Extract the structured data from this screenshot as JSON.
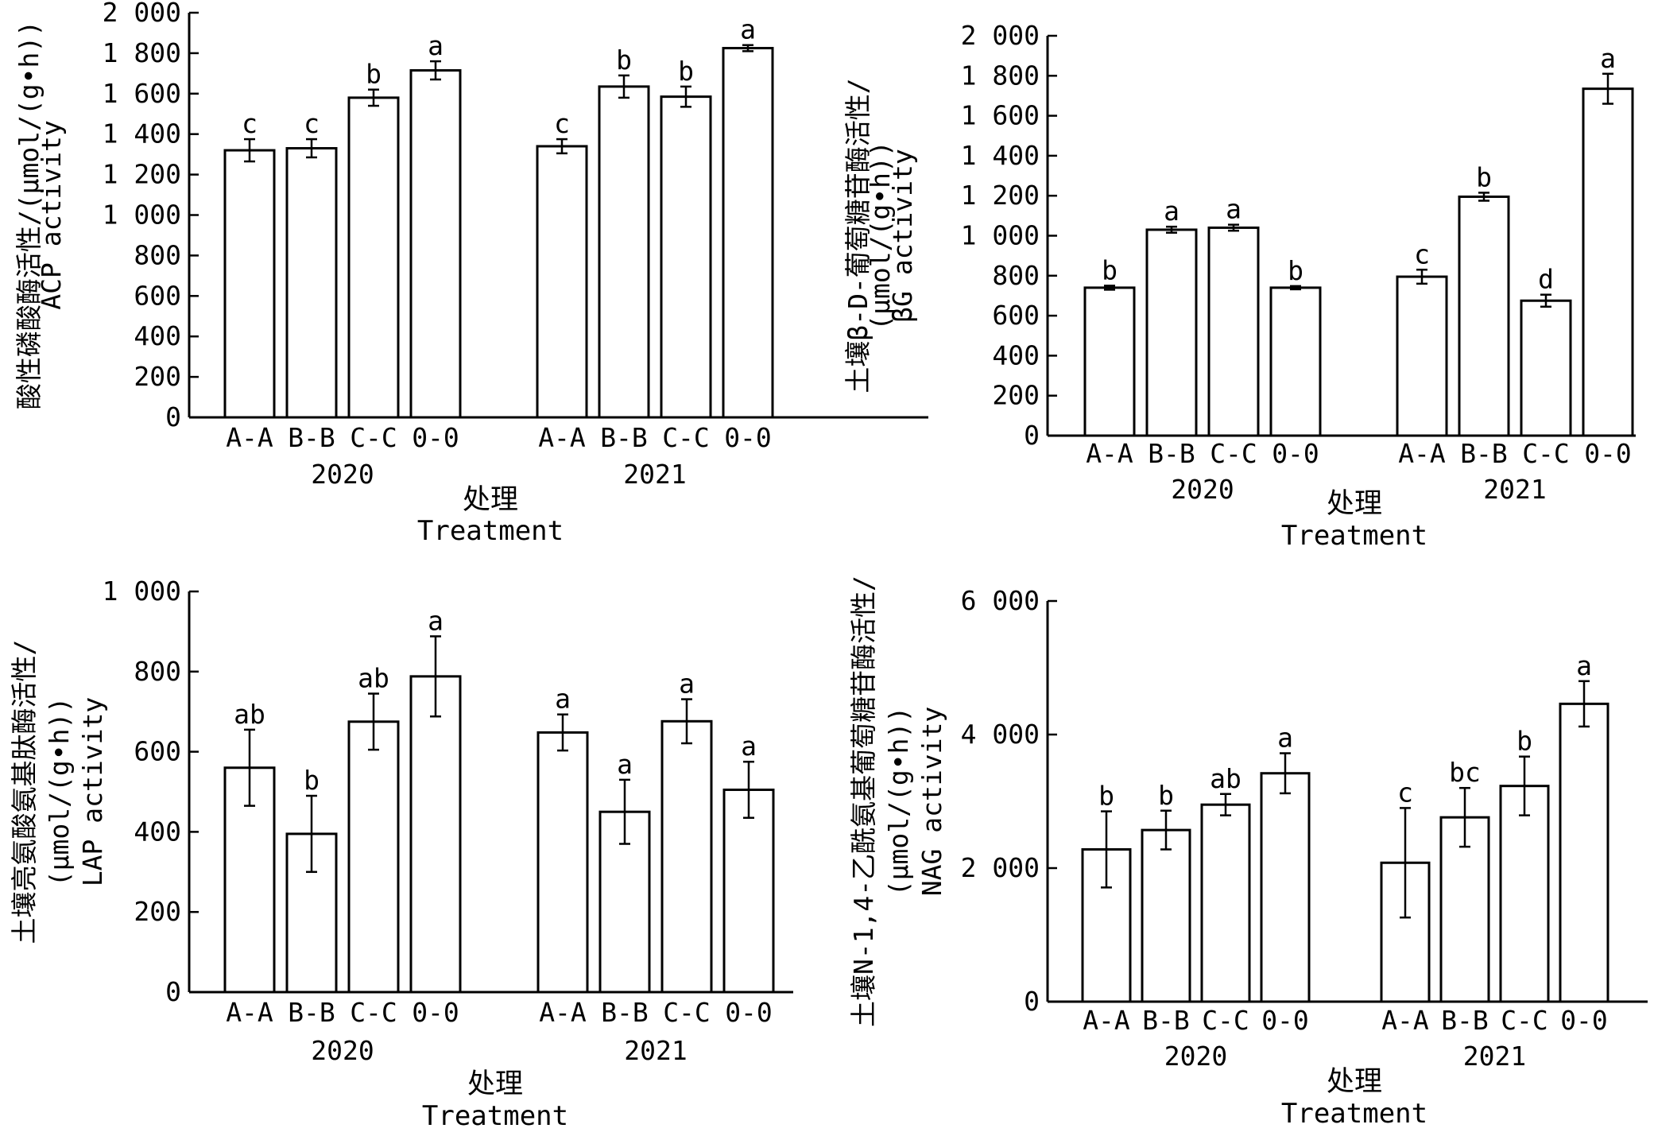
{
  "chart_data": [
    {
      "type": "bar",
      "years": [
        "2020",
        "2021"
      ],
      "categories": [
        "A-A",
        "B-B",
        "C-C",
        "0-0"
      ],
      "ylim": [
        0,
        2000
      ],
      "yticks": [
        0,
        200,
        400,
        600,
        800,
        1000,
        1200,
        1400,
        1600,
        1800,
        2000
      ],
      "ytick_labels": [
        "0",
        "200",
        "400",
        "600",
        "800",
        "1 000",
        "1 200",
        "1 400",
        "1 600",
        "1 800",
        "2 000"
      ],
      "ylabel_lines": [
        "酸性磷酸酶活性/(μmol/(g•h))",
        "ACP activity"
      ],
      "xlabel_cn": "处理",
      "xlabel_en": "Treatment",
      "groups": [
        {
          "year": "2020",
          "values": [
            1320,
            1330,
            1580,
            1715
          ],
          "errors": [
            55,
            45,
            40,
            45
          ],
          "letters": [
            "c",
            "c",
            "b",
            "a"
          ]
        },
        {
          "year": "2021",
          "values": [
            1340,
            1635,
            1585,
            1825
          ],
          "errors": [
            35,
            55,
            50,
            15
          ],
          "letters": [
            "c",
            "b",
            "b",
            "a"
          ]
        }
      ]
    },
    {
      "type": "bar",
      "years": [
        "2020",
        "2021"
      ],
      "categories": [
        "A-A",
        "B-B",
        "C-C",
        "0-0"
      ],
      "ylim": [
        0,
        2000
      ],
      "yticks": [
        0,
        200,
        400,
        600,
        800,
        1000,
        1200,
        1400,
        1600,
        1800,
        2000
      ],
      "ytick_labels": [
        "0",
        "200",
        "400",
        "600",
        "800",
        "1 000",
        "1 200",
        "1 400",
        "1 600",
        "1 800",
        "2 000"
      ],
      "ylabel_lines": [
        "土壤β-D-葡萄糖苷酶活性/",
        "(μmol/(g•h))",
        "βG activity"
      ],
      "xlabel_cn": "处理",
      "xlabel_en": "Treatment",
      "groups": [
        {
          "year": "2020",
          "values": [
            740,
            1030,
            1040,
            740
          ],
          "errors": [
            10,
            15,
            15,
            8
          ],
          "letters": [
            "b",
            "a",
            "a",
            "b"
          ]
        },
        {
          "year": "2021",
          "values": [
            795,
            1195,
            675,
            1735
          ],
          "errors": [
            35,
            20,
            30,
            75
          ],
          "letters": [
            "c",
            "b",
            "d",
            "a"
          ]
        }
      ]
    },
    {
      "type": "bar",
      "years": [
        "2020",
        "2021"
      ],
      "categories": [
        "A-A",
        "B-B",
        "C-C",
        "0-0"
      ],
      "ylim": [
        0,
        1000
      ],
      "yticks": [
        0,
        200,
        400,
        600,
        800,
        1000
      ],
      "ytick_labels": [
        "0",
        "200",
        "400",
        "600",
        "800",
        "1 000"
      ],
      "ylabel_lines": [
        "土壤亮氨酸氨基肽酶活性/",
        "(μmol/(g•h))",
        "LAP activity"
      ],
      "xlabel_cn": "处理",
      "xlabel_en": "Treatment",
      "groups": [
        {
          "year": "2020",
          "values": [
            560,
            395,
            675,
            788
          ],
          "errors": [
            95,
            95,
            70,
            100
          ],
          "letters": [
            "ab",
            "b",
            "ab",
            "a"
          ]
        },
        {
          "year": "2021",
          "values": [
            648,
            450,
            676,
            505
          ],
          "errors": [
            45,
            80,
            55,
            70
          ],
          "letters": [
            "a",
            "a",
            "a",
            "a"
          ]
        }
      ]
    },
    {
      "type": "bar",
      "years": [
        "2020",
        "2021"
      ],
      "categories": [
        "A-A",
        "B-B",
        "C-C",
        "0-0"
      ],
      "ylim": [
        0,
        6000
      ],
      "yticks": [
        0,
        2000,
        4000,
        6000
      ],
      "ytick_labels": [
        "0",
        "2 000",
        "4 000",
        "6 000"
      ],
      "ylabel_lines": [
        "土壤N-1,4-乙酰氨基葡萄糖苷酶活性/",
        "(μmol/(g•h))",
        "NAG activity"
      ],
      "xlabel_cn": "处理",
      "xlabel_en": "Treatment",
      "groups": [
        {
          "year": "2020",
          "values": [
            2280,
            2570,
            2950,
            3420
          ],
          "errors": [
            570,
            290,
            160,
            300
          ],
          "letters": [
            "b",
            "b",
            "ab",
            "a"
          ]
        },
        {
          "year": "2021",
          "values": [
            2080,
            2760,
            3230,
            4460
          ],
          "errors": [
            820,
            440,
            440,
            340
          ],
          "letters": [
            "c",
            "bc",
            "b",
            "a"
          ]
        }
      ]
    }
  ]
}
